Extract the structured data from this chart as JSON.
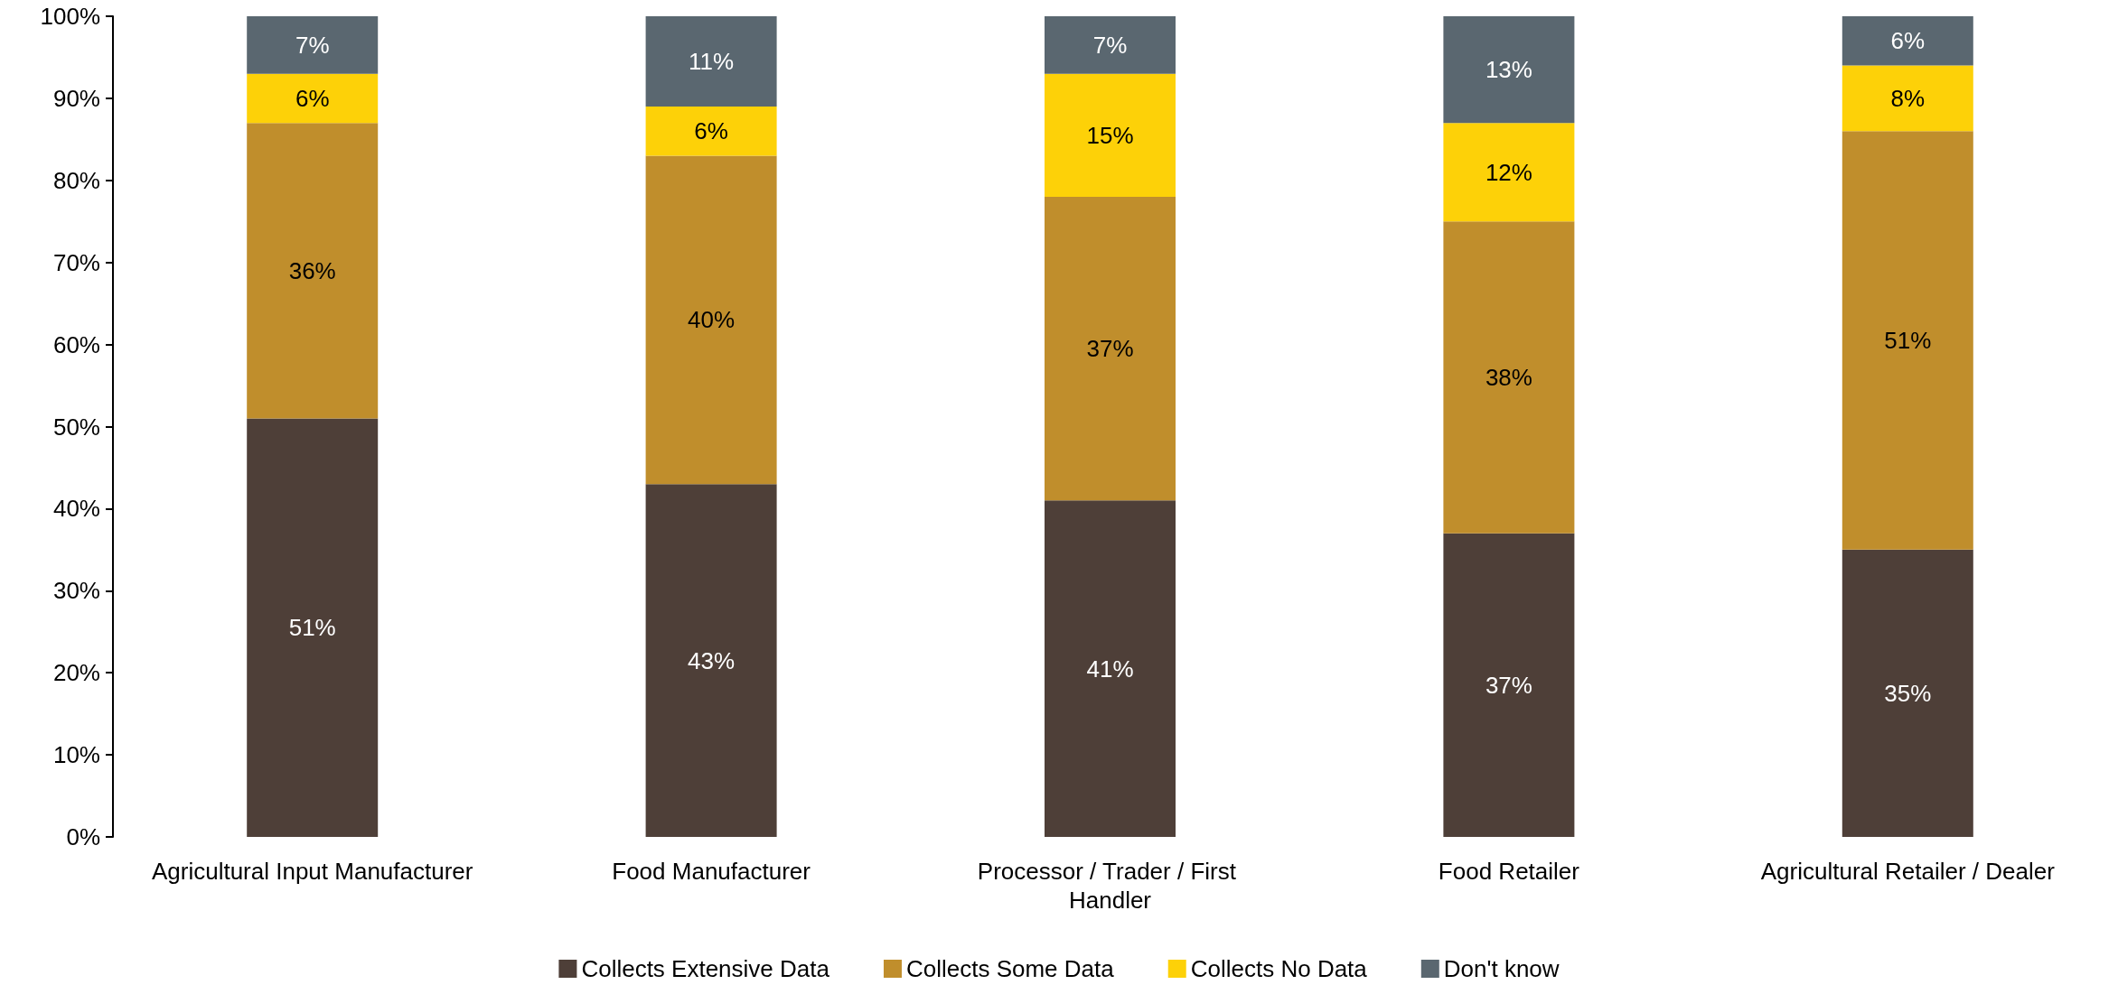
{
  "chart_data": {
    "type": "bar",
    "stacked": true,
    "categories": [
      "Agricultural Input Manufacturer",
      "Food Manufacturer",
      "Processor / Trader / First Handler",
      "Food Retailer",
      "Agricultural Retailer / Dealer"
    ],
    "series": [
      {
        "name": "Collects Extensive Data",
        "color": "#4e3f38",
        "values": [
          51,
          43,
          41,
          37,
          35
        ],
        "value_labels": [
          "51%",
          "43%",
          "41%",
          "37%",
          "35%"
        ]
      },
      {
        "name": "Collects Some Data",
        "color": "#c08e2c",
        "values": [
          36,
          40,
          37,
          38,
          51
        ],
        "value_labels": [
          "36%",
          "40%",
          "37%",
          "38%",
          "51%"
        ]
      },
      {
        "name": "Collects No Data",
        "color": "#fdd108",
        "values": [
          6,
          6,
          15,
          12,
          8
        ],
        "value_labels": [
          "6%",
          "6%",
          "15%",
          "12%",
          "8%"
        ]
      },
      {
        "name": "Don't know",
        "color": "#5a6770",
        "values": [
          7,
          11,
          7,
          13,
          6
        ],
        "value_labels": [
          "7%",
          "11%",
          "7%",
          "13%",
          "6%"
        ]
      }
    ],
    "ylim": [
      0,
      100
    ],
    "yticks": [
      {
        "value": 0,
        "label": "0%"
      },
      {
        "value": 10,
        "label": "10%"
      },
      {
        "value": 20,
        "label": "20%"
      },
      {
        "value": 30,
        "label": "30%"
      },
      {
        "value": 40,
        "label": "40%"
      },
      {
        "value": 50,
        "label": "50%"
      },
      {
        "value": 60,
        "label": "60%"
      },
      {
        "value": 70,
        "label": "70%"
      },
      {
        "value": 80,
        "label": "80%"
      },
      {
        "value": 90,
        "label": "90%"
      },
      {
        "value": 100,
        "label": "100%"
      }
    ],
    "grid": false,
    "legend": "bottom"
  }
}
